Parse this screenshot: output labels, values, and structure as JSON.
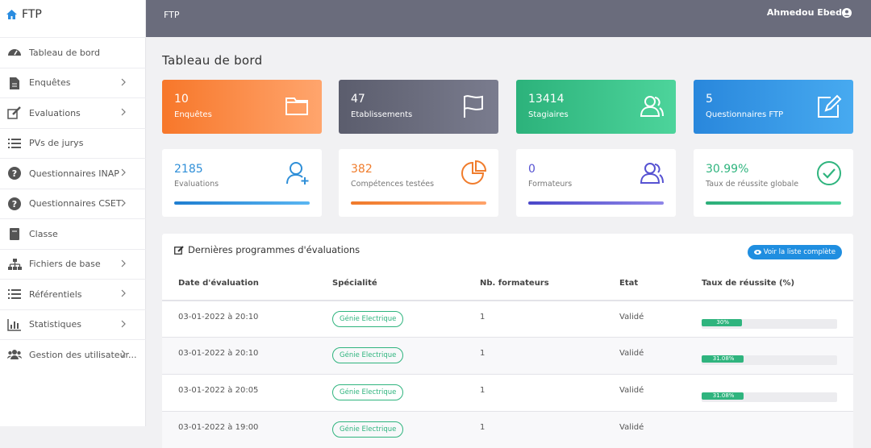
{
  "sidebar": {
    "brand": "FTP",
    "items": [
      {
        "label": "Tableau de bord",
        "submenu": false
      },
      {
        "label": "Enquêtes",
        "submenu": true
      },
      {
        "label": "Evaluations",
        "submenu": true
      },
      {
        "label": "PVs de jurys",
        "submenu": false
      },
      {
        "label": "Questionnaires INAP",
        "submenu": true
      },
      {
        "label": "Questionnaires CSET",
        "submenu": true
      },
      {
        "label": "Classe",
        "submenu": false
      },
      {
        "label": "Fichiers de base",
        "submenu": true
      },
      {
        "label": "Référentiels",
        "submenu": true
      },
      {
        "label": "Statistiques",
        "submenu": true
      },
      {
        "label": "Gestion des utilisateur...",
        "submenu": true
      }
    ]
  },
  "topbar": {
    "title": "FTP",
    "user": "Ahmedou Ebed"
  },
  "page": {
    "title": "Tableau de bord"
  },
  "cards_top": [
    {
      "value": "10",
      "label": "Enquêtes"
    },
    {
      "value": "47",
      "label": "Etablissements"
    },
    {
      "value": "13414",
      "label": "Stagiaires"
    },
    {
      "value": "5",
      "label": "Questionnaires FTP"
    }
  ],
  "cards_bottom": [
    {
      "value": "2185",
      "label": "Evaluations"
    },
    {
      "value": "382",
      "label": "Compétences testées"
    },
    {
      "value": "0",
      "label": "Formateurs"
    },
    {
      "value": "30.99%",
      "label": "Taux de réussite globale"
    }
  ],
  "table": {
    "title": "Dernières programmes d'évaluations",
    "button": "Voir la liste complète",
    "columns": [
      "Date d'évaluation",
      "Spécialité",
      "Nb. formateurs",
      "Etat",
      "Taux de réussite (%)"
    ],
    "rows": [
      {
        "date": "03-01-2022 à 20:10",
        "specialty": "Génie Electrique",
        "trainers": "1",
        "status": "Validé",
        "rate": {
          "value": 30,
          "label": "30%"
        }
      },
      {
        "date": "03-01-2022 à 20:10",
        "specialty": "Génie Electrique",
        "trainers": "1",
        "status": "Validé",
        "rate": {
          "value": 31.08,
          "label": "31.08%"
        }
      },
      {
        "date": "03-01-2022 à 20:05",
        "specialty": "Génie Electrique",
        "trainers": "1",
        "status": "Validé",
        "rate": {
          "value": 31.08,
          "label": "31.08%"
        }
      },
      {
        "date": "03-01-2022 à 19:00",
        "specialty": "Génie Electrique",
        "trainers": "1",
        "status": "Validé"
      }
    ]
  }
}
